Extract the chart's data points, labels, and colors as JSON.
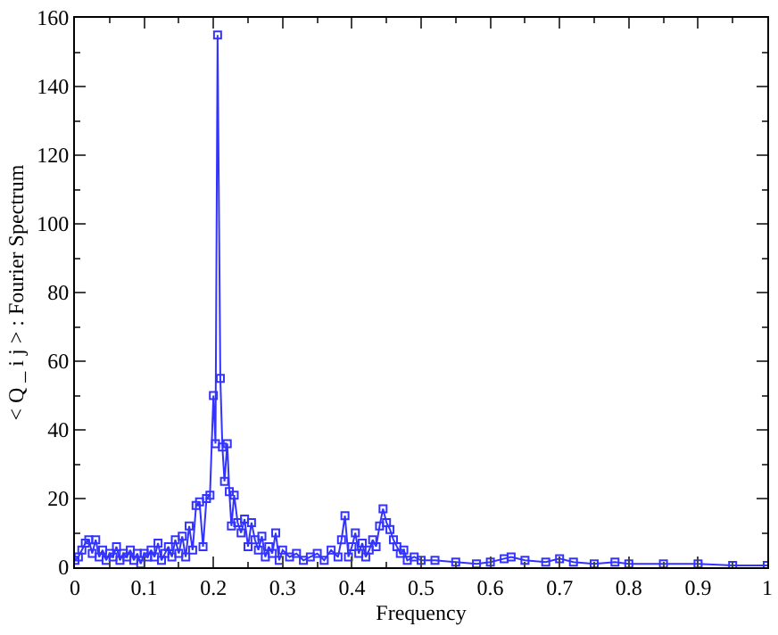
{
  "chart_data": {
    "type": "line",
    "xlabel": "Frequency",
    "ylabel": "< Q _ i j > : Fourier Spectrum",
    "x": [
      0,
      0.005,
      0.01,
      0.015,
      0.02,
      0.025,
      0.03,
      0.035,
      0.04,
      0.045,
      0.05,
      0.055,
      0.06,
      0.065,
      0.07,
      0.075,
      0.08,
      0.085,
      0.09,
      0.095,
      0.1,
      0.105,
      0.11,
      0.115,
      0.12,
      0.125,
      0.13,
      0.135,
      0.14,
      0.145,
      0.15,
      0.155,
      0.16,
      0.165,
      0.17,
      0.175,
      0.18,
      0.185,
      0.19,
      0.195,
      0.2,
      0.203,
      0.206,
      0.21,
      0.213,
      0.216,
      0.22,
      0.223,
      0.226,
      0.23,
      0.235,
      0.24,
      0.245,
      0.25,
      0.255,
      0.26,
      0.265,
      0.27,
      0.275,
      0.28,
      0.285,
      0.29,
      0.295,
      0.3,
      0.31,
      0.32,
      0.33,
      0.34,
      0.35,
      0.36,
      0.37,
      0.38,
      0.385,
      0.39,
      0.395,
      0.4,
      0.405,
      0.41,
      0.415,
      0.42,
      0.425,
      0.43,
      0.435,
      0.44,
      0.445,
      0.45,
      0.455,
      0.46,
      0.465,
      0.47,
      0.475,
      0.48,
      0.49,
      0.5,
      0.52,
      0.55,
      0.58,
      0.6,
      0.62,
      0.63,
      0.65,
      0.68,
      0.7,
      0.72,
      0.75,
      0.78,
      0.8,
      0.85,
      0.9,
      0.95,
      1
    ],
    "series": [
      {
        "color": "#3333ff",
        "values": [
          2,
          3,
          5,
          7,
          8,
          4,
          8,
          3,
          5,
          2,
          4,
          3,
          6,
          2,
          4,
          3,
          5,
          2,
          4,
          1,
          4,
          3,
          5,
          3,
          7,
          2,
          4,
          6,
          3,
          8,
          4,
          9,
          3,
          12,
          5,
          18,
          19,
          6,
          20,
          21,
          50,
          36,
          155,
          55,
          35,
          25,
          36,
          22,
          12,
          21,
          13,
          10,
          14,
          6,
          13,
          8,
          5,
          9,
          3,
          6,
          4,
          10,
          2,
          5,
          3,
          4,
          2,
          3,
          4,
          2,
          5,
          3,
          8,
          15,
          3,
          6,
          10,
          4,
          7,
          3,
          5,
          8,
          6,
          12,
          17,
          13,
          11,
          8,
          6,
          4,
          5,
          2,
          3,
          2,
          2,
          1.5,
          1,
          1.5,
          2.5,
          3,
          2,
          1.5,
          2.5,
          1.5,
          1,
          1.5,
          1,
          1,
          1,
          0.5,
          0.5
        ]
      }
    ],
    "xlim": [
      0,
      1
    ],
    "xticks": [
      0,
      {
        "value": 0.1,
        "label": "0.1"
      },
      {
        "value": 0.2,
        "label": "0.2"
      },
      {
        "value": 0.3,
        "label": "0.3"
      },
      {
        "value": 0.4,
        "label": "0.4"
      },
      {
        "value": 0.5,
        "label": "0.5"
      },
      {
        "value": 0.6,
        "label": "0.6"
      },
      {
        "value": 0.7,
        "label": "0.7"
      },
      {
        "value": 0.8,
        "label": "0.8"
      },
      {
        "value": 0.9,
        "label": "0.9"
      },
      1
    ],
    "ylim": [
      0,
      160
    ],
    "yticks": [
      0,
      20,
      40,
      60,
      80,
      100,
      120,
      140,
      160
    ],
    "grid": false,
    "marker": "square",
    "line_style": "solid"
  }
}
